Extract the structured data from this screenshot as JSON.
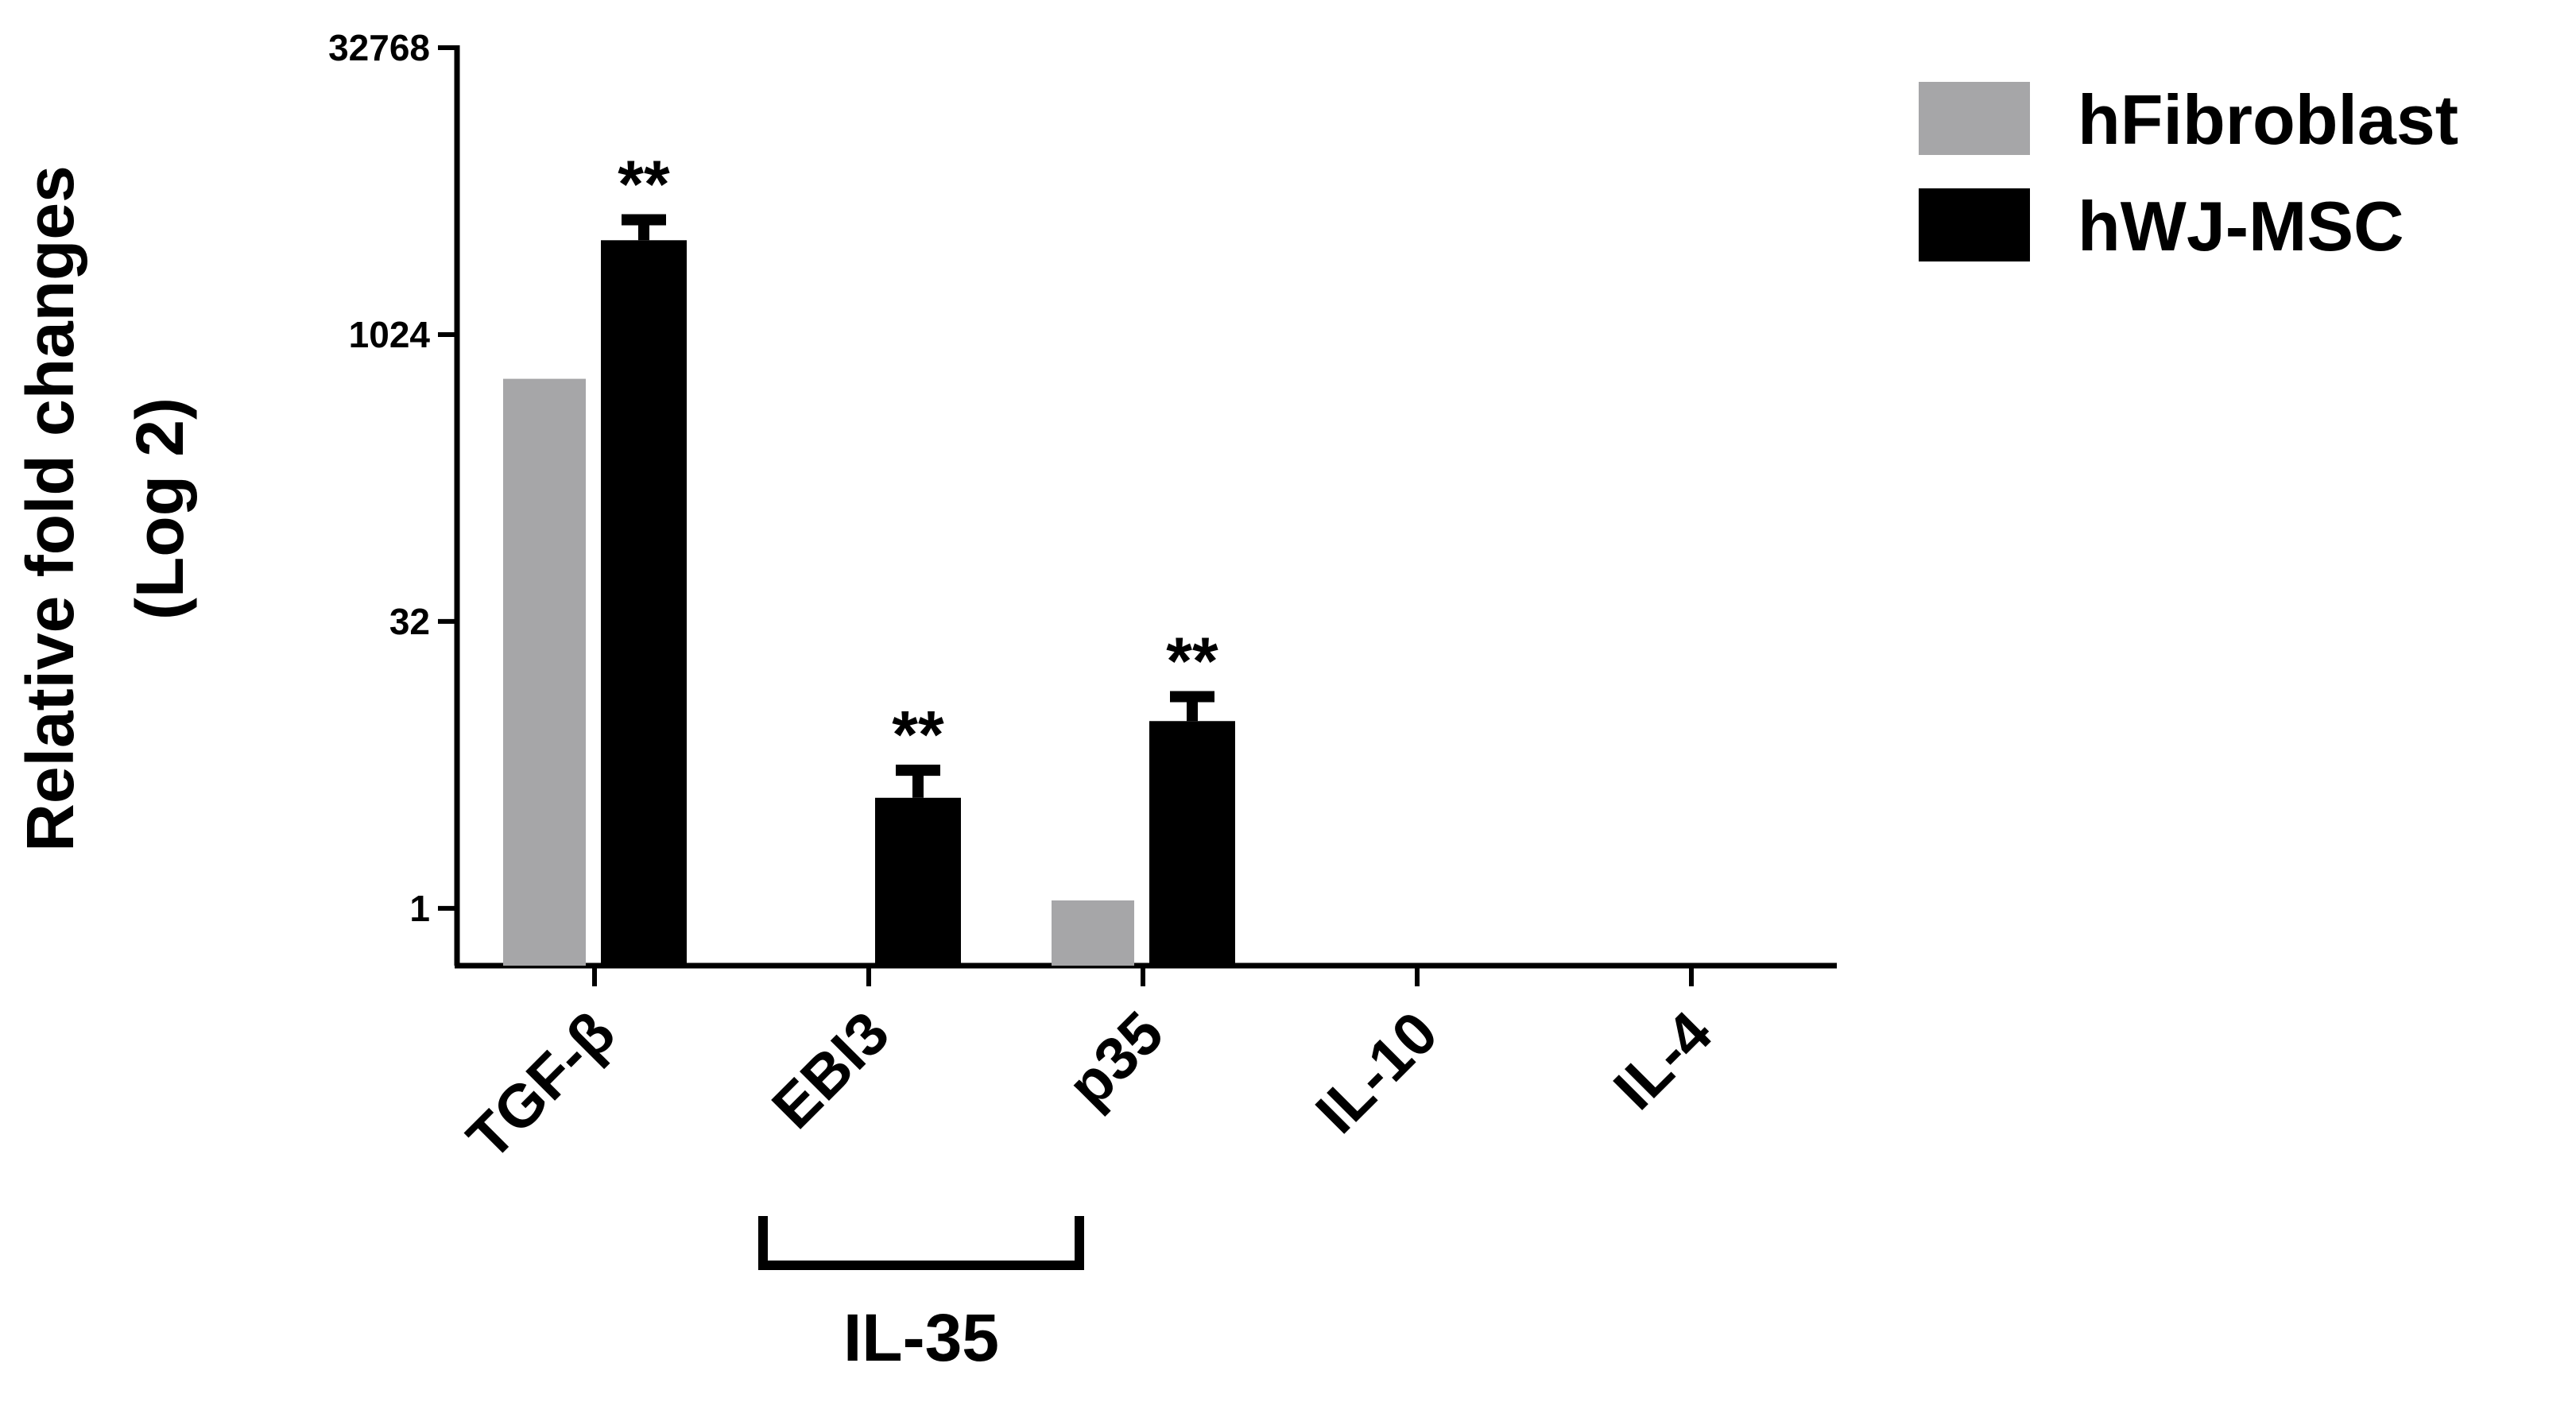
{
  "chart_data": {
    "type": "bar",
    "ylabel": [
      "Relative fold changes",
      "(Log 2)"
    ],
    "categories": [
      "TGF-β",
      "EBI3",
      "p35",
      "IL-10",
      "IL-4"
    ],
    "series": [
      {
        "name": "hFibroblast",
        "color": "#a6a6a8",
        "values": [
          600,
          null,
          1.1,
          null,
          null
        ],
        "errors": [
          null,
          null,
          null,
          null,
          null
        ]
      },
      {
        "name": "hWJ-MSC",
        "color": "#000000",
        "values": [
          3200,
          3.8,
          9.6,
          null,
          null
        ],
        "errors": [
          900,
          1.5,
          3.3,
          null,
          null
        ]
      }
    ],
    "annotations": [
      {
        "text": "**",
        "series": 1,
        "category": 0
      },
      {
        "text": "**",
        "series": 1,
        "category": 1
      },
      {
        "text": "**",
        "series": 1,
        "category": 2
      }
    ],
    "groups": [
      {
        "label": "IL-35",
        "from": 1,
        "to": 2
      }
    ],
    "log_scale": "y",
    "log_base": 2,
    "ylim": [
      0.5,
      32768
    ],
    "yticks": [
      1,
      32,
      1024,
      32768
    ],
    "legend": "top-right",
    "grid": false
  }
}
